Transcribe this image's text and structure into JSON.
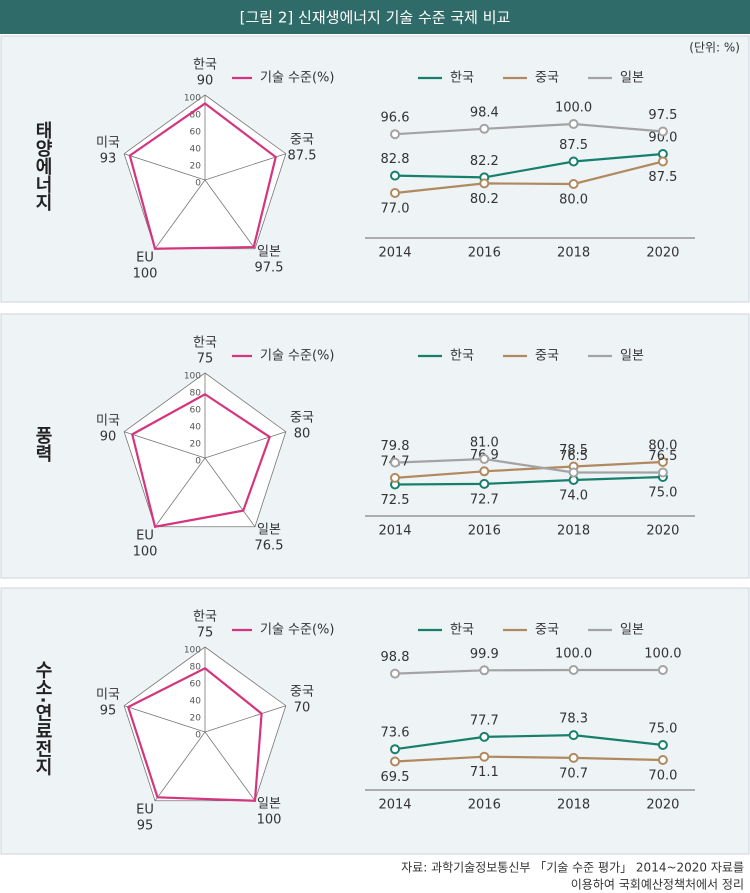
{
  "title": "[그림 2] 신재생에너지 기술 수준 국제 비교",
  "unit": "(단위: %)",
  "source": [
    "자료: 과학기술정보통신부 「기술 수준 평가」 2014~2020 자료를",
    "이용하여 국회예산정책처에서 정리"
  ],
  "chart_data": [
    {
      "type": "radar",
      "title": "태양에너지",
      "categories": [
        "한국",
        "중국",
        "일본",
        "EU",
        "미국"
      ],
      "series": [
        {
          "name": "기술 수준(%)",
          "color": "#d4357e",
          "values": [
            90,
            87.5,
            97.5,
            100,
            93
          ]
        }
      ],
      "rlim": [
        0,
        100
      ],
      "rticks": [
        0,
        20,
        40,
        60,
        80,
        100
      ]
    },
    {
      "type": "line",
      "categories": [
        "2014",
        "2016",
        "2018",
        "2020"
      ],
      "ylim": [
        62,
        104
      ],
      "series": [
        {
          "name": "한국",
          "color": "#17806d",
          "values": [
            82.8,
            82.2,
            87.5,
            90
          ],
          "value_labels": [
            "82.8",
            "82.2",
            "87.5",
            "90.0"
          ]
        },
        {
          "name": "중국",
          "color": "#b08a5e",
          "values": [
            77,
            80.2,
            80,
            87.5
          ],
          "value_labels": [
            "77.0",
            "80.2",
            "80.0",
            "87.5"
          ]
        },
        {
          "name": "일본",
          "color": "#a3a3a3",
          "values": [
            96.6,
            98.4,
            100,
            97.5
          ],
          "value_labels": [
            "96.6",
            "98.4",
            "100.0",
            "97.5"
          ]
        }
      ]
    },
    {
      "type": "radar",
      "title": "풍력",
      "categories": [
        "한국",
        "중국",
        "일본",
        "EU",
        "미국"
      ],
      "series": [
        {
          "name": "기술 수준(%)",
          "color": "#d4357e",
          "values": [
            75,
            80,
            76.5,
            100,
            90
          ]
        }
      ],
      "rlim": [
        0,
        100
      ],
      "rticks": [
        0,
        20,
        40,
        60,
        80,
        100
      ]
    },
    {
      "type": "line",
      "categories": [
        "2014",
        "2016",
        "2018",
        "2020"
      ],
      "ylim": [
        62,
        104
      ],
      "series": [
        {
          "name": "한국",
          "color": "#17806d",
          "values": [
            72.5,
            72.7,
            74,
            75
          ],
          "value_labels": [
            "72.5",
            "72.7",
            "74.0",
            "75.0"
          ]
        },
        {
          "name": "중국",
          "color": "#b08a5e",
          "values": [
            74.7,
            76.9,
            78.5,
            80
          ],
          "value_labels": [
            "74.7",
            "76.9",
            "78.5",
            "80.0"
          ]
        },
        {
          "name": "일본",
          "color": "#a3a3a3",
          "values": [
            79.8,
            81,
            76.5,
            76.5
          ],
          "value_labels": [
            "79.8",
            "81.0",
            "76.5",
            "76.5"
          ]
        }
      ]
    },
    {
      "type": "radar",
      "title": "수소·연료전지",
      "categories": [
        "한국",
        "중국",
        "일본",
        "EU",
        "미국"
      ],
      "series": [
        {
          "name": "기술 수준(%)",
          "color": "#d4357e",
          "values": [
            75,
            70,
            100,
            95,
            95
          ]
        }
      ],
      "rlim": [
        0,
        100
      ],
      "rticks": [
        0,
        20,
        40,
        60,
        80,
        100
      ]
    },
    {
      "type": "line",
      "categories": [
        "2014",
        "2016",
        "2018",
        "2020"
      ],
      "ylim": [
        60,
        102
      ],
      "series": [
        {
          "name": "한국",
          "color": "#17806d",
          "values": [
            73.6,
            77.7,
            78.3,
            75
          ],
          "value_labels": [
            "73.6",
            "77.7",
            "78.3",
            "75.0"
          ]
        },
        {
          "name": "중국",
          "color": "#b08a5e",
          "values": [
            69.5,
            71.1,
            70.7,
            70
          ],
          "value_labels": [
            "69.5",
            "71.1",
            "70.7",
            "70.0"
          ]
        },
        {
          "name": "일본",
          "color": "#a3a3a3",
          "values": [
            98.8,
            99.9,
            100,
            100
          ],
          "value_labels": [
            "98.8",
            "99.9",
            "100.0",
            "100.0"
          ]
        }
      ]
    }
  ]
}
